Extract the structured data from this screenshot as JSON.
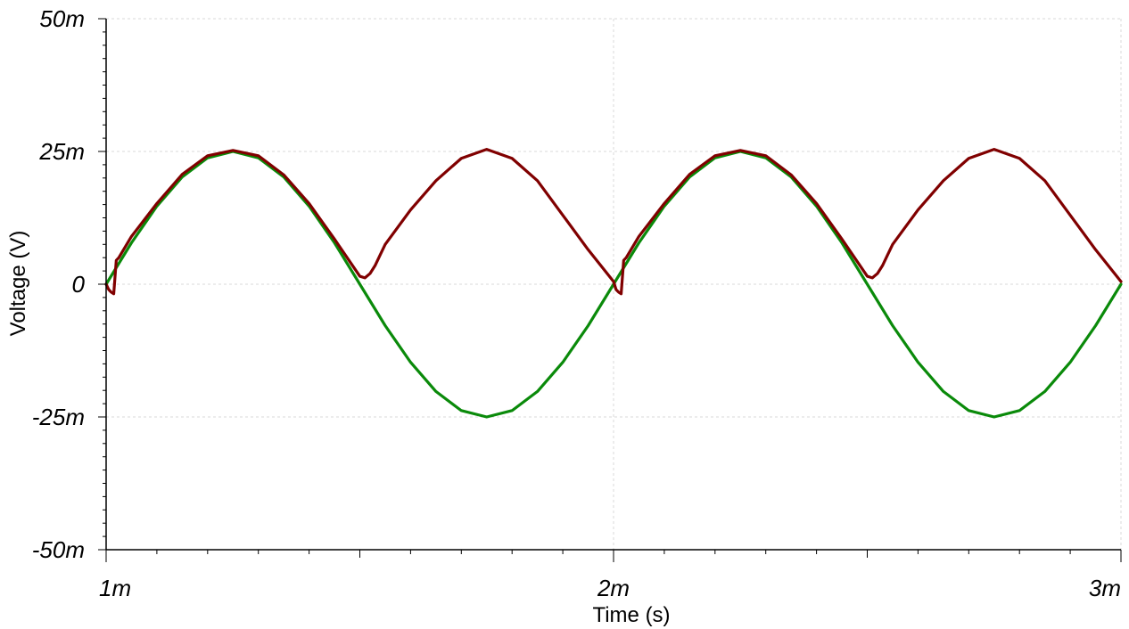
{
  "chart_data": {
    "type": "line",
    "xlabel": "Time (s)",
    "ylabel": "Voltage (V)",
    "xlim": [
      0.001,
      0.003
    ],
    "ylim": [
      -0.05,
      0.05
    ],
    "x_ticks": [
      {
        "value": 0.001,
        "label": "1m"
      },
      {
        "value": 0.002,
        "label": "2m"
      },
      {
        "value": 0.003,
        "label": "3m"
      }
    ],
    "y_ticks": [
      {
        "value": 0.05,
        "label": "50m"
      },
      {
        "value": 0.025,
        "label": "25m"
      },
      {
        "value": 0,
        "label": "0"
      },
      {
        "value": -0.025,
        "label": "-25m"
      },
      {
        "value": -0.05,
        "label": "-50m"
      }
    ],
    "grid": true,
    "series": [
      {
        "color": "#0a8a0a",
        "x": [
          0.001,
          0.00105,
          0.0011,
          0.00115,
          0.0012,
          0.00125,
          0.0013,
          0.00135,
          0.0014,
          0.00145,
          0.0015,
          0.00155,
          0.0016,
          0.00165,
          0.0017,
          0.00175,
          0.0018,
          0.00185,
          0.0019,
          0.00195,
          0.002,
          0.00205,
          0.0021,
          0.00215,
          0.0022,
          0.00225,
          0.0023,
          0.00235,
          0.0024,
          0.00245,
          0.0025,
          0.00255,
          0.0026,
          0.00265,
          0.0027,
          0.00275,
          0.0028,
          0.00285,
          0.0029,
          0.00295,
          0.003
        ],
        "y": [
          0,
          0.0078,
          0.0147,
          0.0202,
          0.0238,
          0.025,
          0.0238,
          0.0202,
          0.0147,
          0.0078,
          0,
          -0.0078,
          -0.0147,
          -0.0202,
          -0.0238,
          -0.025,
          -0.0238,
          -0.0202,
          -0.0147,
          -0.0078,
          0,
          0.0078,
          0.0147,
          0.0202,
          0.0238,
          0.025,
          0.0238,
          0.0202,
          0.0147,
          0.0078,
          0,
          -0.0078,
          -0.0147,
          -0.0202,
          -0.0238,
          -0.025,
          -0.0238,
          -0.0202,
          -0.0147,
          -0.0078,
          0
        ]
      },
      {
        "color": "#800000",
        "x": [
          0.001,
          0.001005,
          0.00101,
          0.001015,
          0.00102,
          0.001025,
          0.00105,
          0.0011,
          0.00115,
          0.0012,
          0.00125,
          0.0013,
          0.00135,
          0.0014,
          0.00145,
          0.0015,
          0.00151,
          0.00152,
          0.00153,
          0.00154,
          0.00155,
          0.0016,
          0.00165,
          0.0017,
          0.00175,
          0.0018,
          0.00185,
          0.0019,
          0.00195,
          0.002,
          0.002005,
          0.00201,
          0.002015,
          0.00202,
          0.002025,
          0.00205,
          0.0021,
          0.00215,
          0.0022,
          0.00225,
          0.0023,
          0.00235,
          0.0024,
          0.00245,
          0.0025,
          0.00251,
          0.00252,
          0.00253,
          0.00254,
          0.00255,
          0.0026,
          0.00265,
          0.0027,
          0.00275,
          0.0028,
          0.00285,
          0.0029,
          0.00295,
          0.003
        ],
        "y": [
          0,
          -0.001,
          -0.0015,
          -0.0018,
          0.0045,
          0.005,
          0.009,
          0.0152,
          0.0207,
          0.0242,
          0.0252,
          0.0242,
          0.0206,
          0.0152,
          0.0085,
          0.0015,
          0.0012,
          0.002,
          0.0035,
          0.0055,
          0.0075,
          0.014,
          0.0195,
          0.0237,
          0.0254,
          0.0237,
          0.0195,
          0.013,
          0.0065,
          0.0005,
          -0.001,
          -0.0015,
          -0.0018,
          0.0045,
          0.005,
          0.009,
          0.0152,
          0.0207,
          0.0242,
          0.0252,
          0.0242,
          0.0206,
          0.0152,
          0.0085,
          0.0015,
          0.0012,
          0.002,
          0.0035,
          0.0055,
          0.0075,
          0.014,
          0.0195,
          0.0237,
          0.0254,
          0.0237,
          0.0195,
          0.013,
          0.0065,
          0.0005
        ]
      }
    ]
  }
}
